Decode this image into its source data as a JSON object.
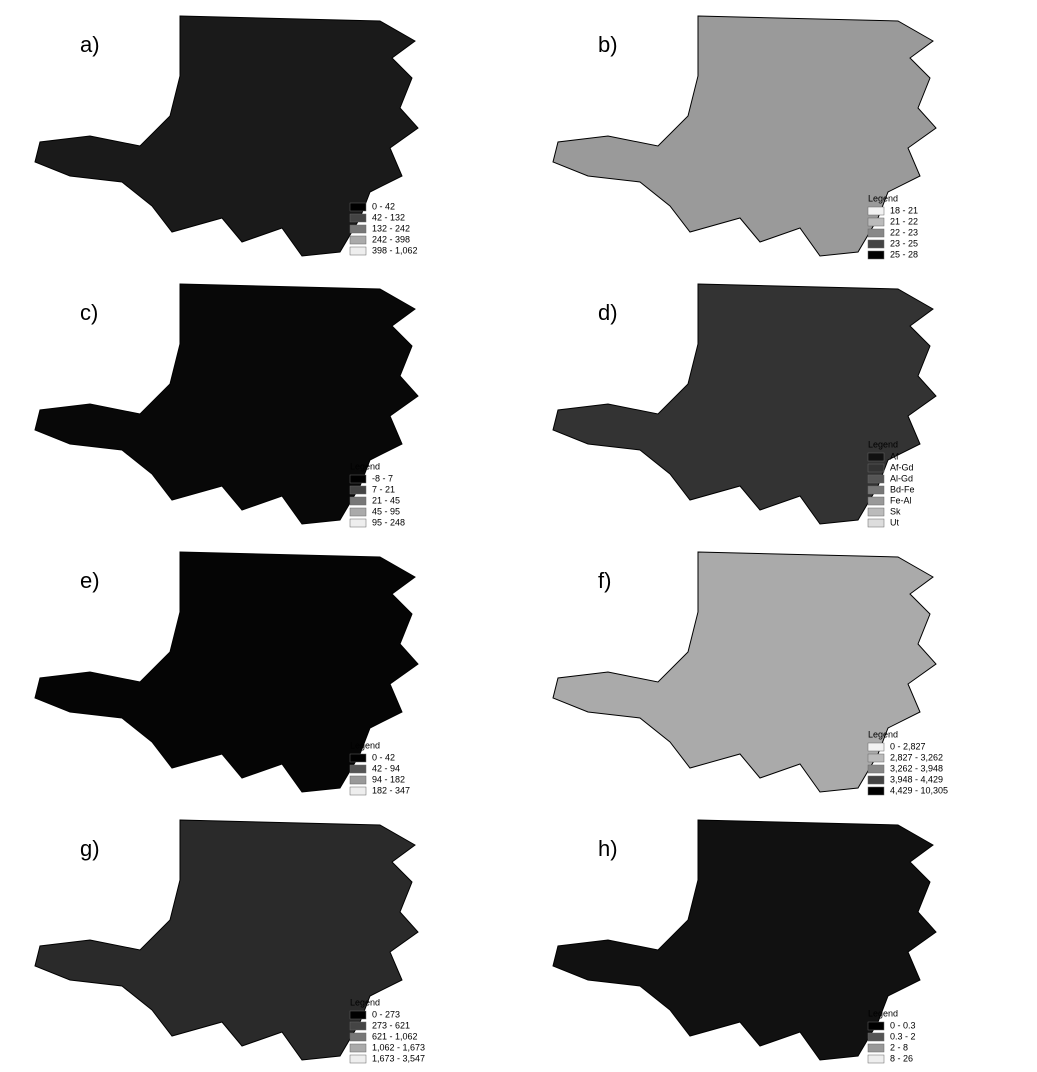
{
  "panels": [
    {
      "label": "a)",
      "legend": [
        {
          "text": "0 - 42",
          "color": "#000000"
        },
        {
          "text": "42 - 132",
          "color": "#444444"
        },
        {
          "text": "132 - 242",
          "color": "#777777"
        },
        {
          "text": "242 - 398",
          "color": "#aaaaaa"
        },
        {
          "text": "398 - 1,062",
          "color": "#eeeeee"
        }
      ]
    },
    {
      "label": "b)",
      "legend_title": "Legend",
      "legend": [
        {
          "text": "18 - 21",
          "color": "#f2f2f2"
        },
        {
          "text": "21 - 22",
          "color": "#bbbbbb"
        },
        {
          "text": "22 - 23",
          "color": "#888888"
        },
        {
          "text": "23 - 25",
          "color": "#444444"
        },
        {
          "text": "25 - 28",
          "color": "#000000"
        }
      ]
    },
    {
      "label": "c)",
      "legend_title": "Legend",
      "legend": [
        {
          "text": "-8 - 7",
          "color": "#000000"
        },
        {
          "text": "7 - 21",
          "color": "#444444"
        },
        {
          "text": "21 - 45",
          "color": "#777777"
        },
        {
          "text": "45 - 95",
          "color": "#aaaaaa"
        },
        {
          "text": "95 - 248",
          "color": "#eeeeee"
        }
      ]
    },
    {
      "label": "d)",
      "legend_title": "Legend",
      "legend": [
        {
          "text": "Af",
          "color": "#111111"
        },
        {
          "text": "Af-Gd",
          "color": "#333333"
        },
        {
          "text": "Al-Gd",
          "color": "#555555"
        },
        {
          "text": "Bd-Fe",
          "color": "#777777"
        },
        {
          "text": "Fe-Al",
          "color": "#999999"
        },
        {
          "text": "Sk",
          "color": "#bbbbbb"
        },
        {
          "text": "Ut",
          "color": "#dddddd"
        }
      ]
    },
    {
      "label": "e)",
      "legend_title": "Legend",
      "legend": [
        {
          "text": "0 - 42",
          "color": "#000000"
        },
        {
          "text": "42 - 94",
          "color": "#555555"
        },
        {
          "text": "94 - 182",
          "color": "#999999"
        },
        {
          "text": "182 - 347",
          "color": "#eeeeee"
        }
      ]
    },
    {
      "label": "f)",
      "legend_title": "Legend",
      "legend": [
        {
          "text": "0 - 2,827",
          "color": "#f2f2f2"
        },
        {
          "text": "2,827 - 3,262",
          "color": "#bbbbbb"
        },
        {
          "text": "3,262 - 3,948",
          "color": "#888888"
        },
        {
          "text": "3,948 - 4,429",
          "color": "#444444"
        },
        {
          "text": "4,429 - 10,305",
          "color": "#000000"
        }
      ]
    },
    {
      "label": "g)",
      "legend_title": "Legend",
      "legend": [
        {
          "text": "0 - 273",
          "color": "#000000"
        },
        {
          "text": "273 - 621",
          "color": "#444444"
        },
        {
          "text": "621 - 1,062",
          "color": "#777777"
        },
        {
          "text": "1,062 - 1,673",
          "color": "#aaaaaa"
        },
        {
          "text": "1,673 - 3,547",
          "color": "#eeeeee"
        }
      ]
    },
    {
      "label": "h)",
      "legend_title": "Legend",
      "legend": [
        {
          "text": "0 - 0.3",
          "color": "#000000"
        },
        {
          "text": "0.3 - 2",
          "color": "#555555"
        },
        {
          "text": "2 - 8",
          "color": "#999999"
        },
        {
          "text": "8 - 26",
          "color": "#eeeeee"
        }
      ]
    }
  ]
}
